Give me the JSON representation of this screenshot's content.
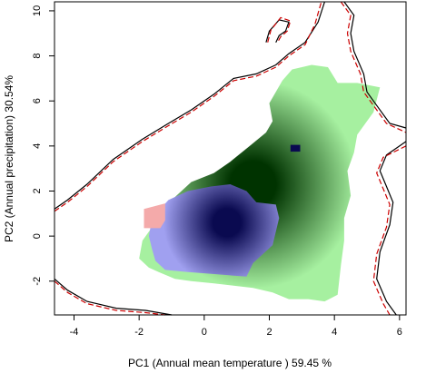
{
  "chart_data": {
    "type": "heatmap",
    "xlabel": "PC1 (Annual mean temperature ) 59.45 %",
    "ylabel": "PC2 (Annual precipitation) 30.54%",
    "xlim": [
      -4.6,
      6.2
    ],
    "ylim": [
      -3.5,
      10.4
    ],
    "x_ticks": [
      -4,
      -2,
      0,
      2,
      4,
      6
    ],
    "y_ticks": [
      -2,
      0,
      2,
      4,
      6,
      8,
      10
    ],
    "grid": false,
    "legend": "none",
    "colors": {
      "green_light": "#a6f0a0",
      "green_dark": "#003300",
      "blue_light": "#a0a0f0",
      "blue_dark": "#0a0a50",
      "red_light": "#f4aaaa",
      "contour_solid": "#000000",
      "contour_dashed": "#cc0000"
    },
    "layers": [
      {
        "color": "green",
        "region": [
          [
            -2.0,
            -1.0
          ],
          [
            -1.9,
            -0.2
          ],
          [
            -1.5,
            0.6
          ],
          [
            -1.0,
            1.6
          ],
          [
            -0.4,
            2.4
          ],
          [
            0.3,
            2.8
          ],
          [
            0.8,
            3.3
          ],
          [
            1.4,
            4.0
          ],
          [
            1.9,
            4.6
          ],
          [
            2.1,
            5.1
          ],
          [
            2.0,
            5.9
          ],
          [
            2.4,
            6.9
          ],
          [
            2.7,
            7.4
          ],
          [
            3.3,
            7.6
          ],
          [
            3.8,
            7.5
          ],
          [
            4.1,
            6.8
          ],
          [
            4.7,
            6.8
          ],
          [
            5.4,
            6.6
          ],
          [
            5.2,
            5.5
          ],
          [
            4.7,
            4.5
          ],
          [
            4.6,
            3.7
          ],
          [
            4.4,
            2.9
          ],
          [
            4.5,
            1.8
          ],
          [
            4.3,
            0.8
          ],
          [
            4.3,
            -0.2
          ],
          [
            4.2,
            -1.3
          ],
          [
            4.1,
            -2.6
          ],
          [
            3.7,
            -2.9
          ],
          [
            3.2,
            -2.8
          ],
          [
            2.6,
            -2.8
          ],
          [
            2.1,
            -2.5
          ],
          [
            1.5,
            -2.3
          ],
          [
            0.9,
            -2.2
          ],
          [
            0.3,
            -2.1
          ],
          [
            -0.4,
            -2.0
          ],
          [
            -0.9,
            -1.9
          ],
          [
            -1.4,
            -1.6
          ],
          [
            -1.7,
            -1.4
          ]
        ],
        "peak": [
          1.5,
          2.3
        ]
      },
      {
        "color": "blue",
        "region": [
          [
            -1.7,
            0.0
          ],
          [
            -1.6,
            0.8
          ],
          [
            -1.1,
            1.6
          ],
          [
            -0.5,
            2.0
          ],
          [
            0.2,
            2.2
          ],
          [
            0.8,
            2.3
          ],
          [
            1.3,
            2.0
          ],
          [
            1.6,
            1.5
          ],
          [
            2.2,
            1.4
          ],
          [
            2.3,
            0.8
          ],
          [
            2.1,
            -0.4
          ],
          [
            1.5,
            -1.2
          ],
          [
            1.3,
            -1.8
          ],
          [
            0.4,
            -1.7
          ],
          [
            -0.5,
            -1.6
          ],
          [
            -1.2,
            -1.5
          ],
          [
            -1.5,
            -1.1
          ],
          [
            -1.6,
            -0.6
          ]
        ],
        "peak": [
          0.7,
          0.6
        ]
      },
      {
        "color": "blue",
        "region": [
          [
            2.65,
            3.75
          ],
          [
            2.95,
            3.75
          ],
          [
            2.95,
            4.05
          ],
          [
            2.65,
            4.05
          ]
        ],
        "peak": [
          2.8,
          3.9
        ]
      },
      {
        "color": "red",
        "region": [
          [
            -1.85,
            0.35
          ],
          [
            -1.35,
            0.35
          ],
          [
            -1.2,
            0.7
          ],
          [
            -1.2,
            1.45
          ],
          [
            -1.85,
            1.2
          ]
        ]
      }
    ],
    "contours": [
      {
        "style": "solid",
        "points": [
          [
            -4.6,
            1.2
          ],
          [
            -4.2,
            1.6
          ],
          [
            -3.6,
            2.3
          ],
          [
            -2.8,
            3.4
          ],
          [
            -1.9,
            4.3
          ],
          [
            -1.1,
            5.0
          ],
          [
            -0.4,
            5.6
          ],
          [
            0.3,
            6.3
          ],
          [
            0.9,
            7.0
          ],
          [
            1.6,
            7.2
          ],
          [
            2.2,
            7.6
          ],
          [
            2.6,
            8.1
          ],
          [
            3.1,
            8.6
          ],
          [
            3.5,
            9.5
          ],
          [
            3.7,
            10.4
          ]
        ]
      },
      {
        "style": "dashed",
        "points": [
          [
            -4.6,
            1.1
          ],
          [
            -4.2,
            1.5
          ],
          [
            -3.6,
            2.2
          ],
          [
            -2.8,
            3.3
          ],
          [
            -1.9,
            4.2
          ],
          [
            -1.1,
            4.9
          ],
          [
            -0.4,
            5.5
          ],
          [
            0.3,
            6.2
          ],
          [
            0.9,
            6.9
          ],
          [
            1.6,
            7.1
          ],
          [
            2.2,
            7.5
          ],
          [
            2.6,
            8.0
          ],
          [
            3.1,
            8.5
          ],
          [
            3.4,
            9.4
          ],
          [
            3.6,
            10.4
          ]
        ]
      },
      {
        "style": "solid",
        "points": [
          [
            4.3,
            10.4
          ],
          [
            4.6,
            9.8
          ],
          [
            4.5,
            9.0
          ],
          [
            4.6,
            8.2
          ],
          [
            4.9,
            7.2
          ],
          [
            5.0,
            6.4
          ],
          [
            5.3,
            5.8
          ],
          [
            5.7,
            5.0
          ],
          [
            6.2,
            4.8
          ]
        ]
      },
      {
        "style": "dashed",
        "points": [
          [
            4.2,
            10.4
          ],
          [
            4.5,
            9.8
          ],
          [
            4.4,
            9.0
          ],
          [
            4.5,
            8.2
          ],
          [
            4.8,
            7.2
          ],
          [
            4.9,
            6.4
          ],
          [
            5.2,
            5.8
          ],
          [
            5.6,
            5.0
          ],
          [
            6.2,
            4.6
          ]
        ]
      },
      {
        "style": "solid",
        "points": [
          [
            6.2,
            4.2
          ],
          [
            5.6,
            3.6
          ],
          [
            5.4,
            2.9
          ],
          [
            5.6,
            2.2
          ],
          [
            5.8,
            1.5
          ],
          [
            5.7,
            0.5
          ],
          [
            5.4,
            -0.7
          ],
          [
            5.3,
            -1.9
          ],
          [
            5.6,
            -2.9
          ],
          [
            5.9,
            -3.5
          ]
        ]
      },
      {
        "style": "dashed",
        "points": [
          [
            6.2,
            4.0
          ],
          [
            5.5,
            3.5
          ],
          [
            5.3,
            2.8
          ],
          [
            5.5,
            2.1
          ],
          [
            5.7,
            1.4
          ],
          [
            5.6,
            0.4
          ],
          [
            5.3,
            -0.8
          ],
          [
            5.2,
            -2.0
          ],
          [
            5.5,
            -3.0
          ],
          [
            5.7,
            -3.5
          ]
        ]
      },
      {
        "style": "solid",
        "points": [
          [
            -4.6,
            -1.9
          ],
          [
            -4.2,
            -2.4
          ],
          [
            -3.6,
            -2.9
          ],
          [
            -2.7,
            -3.2
          ],
          [
            -1.8,
            -3.3
          ],
          [
            -1.0,
            -3.5
          ]
        ]
      },
      {
        "style": "dashed",
        "points": [
          [
            -4.6,
            -2.0
          ],
          [
            -4.2,
            -2.5
          ],
          [
            -3.6,
            -3.0
          ],
          [
            -2.7,
            -3.3
          ],
          [
            -1.8,
            -3.4
          ],
          [
            -1.2,
            -3.5
          ]
        ]
      },
      {
        "style": "solid",
        "points": [
          [
            1.9,
            8.6
          ],
          [
            2.0,
            9.1
          ],
          [
            2.3,
            9.6
          ],
          [
            2.6,
            9.5
          ],
          [
            2.5,
            9.1
          ],
          [
            2.3,
            8.9
          ],
          [
            2.2,
            8.6
          ]
        ]
      },
      {
        "style": "dashed",
        "points": [
          [
            1.95,
            8.6
          ],
          [
            2.05,
            9.15
          ],
          [
            2.35,
            9.7
          ],
          [
            2.65,
            9.55
          ],
          [
            2.55,
            9.1
          ],
          [
            2.35,
            8.85
          ],
          [
            2.25,
            8.6
          ]
        ]
      }
    ]
  }
}
